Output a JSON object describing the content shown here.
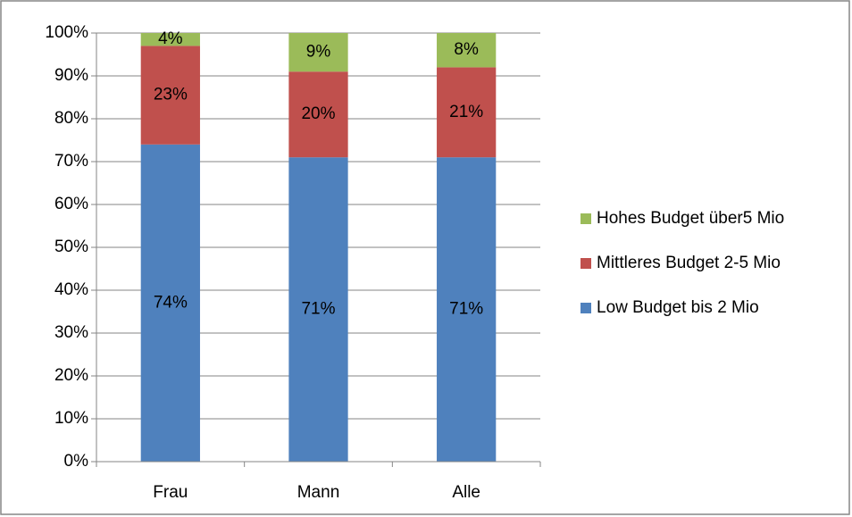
{
  "chart_data": {
    "type": "bar",
    "stacked": true,
    "categories": [
      "Frau",
      "Mann",
      "Alle"
    ],
    "series": [
      {
        "name": "Low Budget bis 2 Mio",
        "color": "#4f81bd",
        "values": [
          74,
          71,
          71
        ],
        "value_labels": [
          "74%",
          "71%",
          "71%"
        ]
      },
      {
        "name": "Mittleres Budget 2-5 Mio",
        "color": "#c0504d",
        "values": [
          23,
          20,
          21
        ],
        "value_labels": [
          "23%",
          "20%",
          "21%"
        ]
      },
      {
        "name": "Hohes Budget über5 Mio",
        "color": "#9bbb59",
        "values": [
          4,
          9,
          8
        ],
        "value_labels": [
          "4%",
          "9%",
          "8%"
        ]
      }
    ],
    "ylim": [
      0,
      100
    ],
    "yticks": [
      {
        "value": 0,
        "label": "0%"
      },
      {
        "value": 10,
        "label": "10%"
      },
      {
        "value": 20,
        "label": "20%"
      },
      {
        "value": 30,
        "label": "30%"
      },
      {
        "value": 40,
        "label": "40%"
      },
      {
        "value": 50,
        "label": "50%"
      },
      {
        "value": 60,
        "label": "60%"
      },
      {
        "value": 70,
        "label": "70%"
      },
      {
        "value": 80,
        "label": "80%"
      },
      {
        "value": 90,
        "label": "90%"
      },
      {
        "value": 100,
        "label": "100%"
      }
    ],
    "grid": true,
    "legend": "right"
  }
}
